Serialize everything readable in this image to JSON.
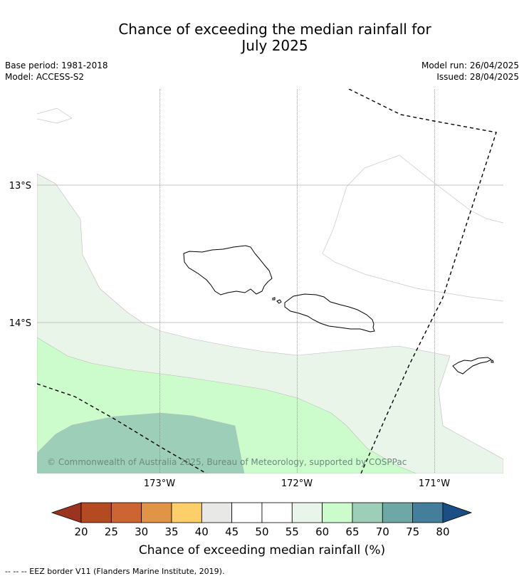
{
  "title": {
    "line1": "Chance of exceeding the median rainfall for",
    "line2": "July 2025"
  },
  "meta": {
    "base_period": "Base period: 1981-2018",
    "model": "Model: ACCESS-S2",
    "model_run": "Model run: 26/04/2025",
    "issued": "Issued: 28/04/2025"
  },
  "map": {
    "lat_labels": [
      "13°S",
      "14°S"
    ],
    "lon_labels": [
      "173°W",
      "172°W",
      "171°W"
    ],
    "copyright": "© Commonwealth of Australia 2025, Bureau of Meteorology, supported by COSPPac",
    "region_colors": {
      "55-60": "#eaf5ea",
      "60-65": "#ccfccc",
      "65-70": "#9dcfb8"
    },
    "coastline_color": "#000000",
    "eez_color": "#000000"
  },
  "colorbar": {
    "title": "Chance of exceeding median rainfall (%)",
    "ticks": [
      "20",
      "25",
      "30",
      "35",
      "40",
      "45",
      "50",
      "55",
      "60",
      "65",
      "70",
      "75",
      "80"
    ],
    "colors": [
      "#b34a22",
      "#cc6532",
      "#e09446",
      "#fdcf6b",
      "#e8e8e6",
      "#ffffff",
      "#ffffff",
      "#eaf5ea",
      "#ccfccc",
      "#9dcfb8",
      "#6da8a7",
      "#447e9b"
    ],
    "under_color": "#9a3320",
    "over_color": "#1c4e86"
  },
  "footnote": "-- -- -- EEZ border V11 (Flanders Marine Institute, 2019)."
}
